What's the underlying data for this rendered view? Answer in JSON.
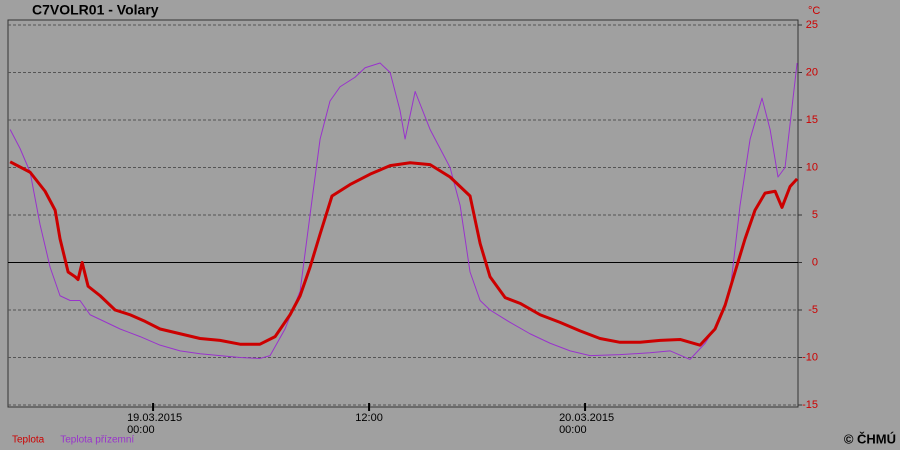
{
  "chart_data": {
    "type": "line",
    "title": "C7VOLR01 - Volary",
    "y_unit": "°C",
    "credit": "© ČHMÚ",
    "xlim": [
      -8.06,
      35.83
    ],
    "xticks": [
      {
        "value": 0,
        "label": "19.03.2015 00:00"
      },
      {
        "value": 12,
        "label": "12:00"
      },
      {
        "value": 24,
        "label": "20.03.2015 00:00"
      }
    ],
    "ylim": [
      -15,
      25
    ],
    "yticks": [
      -15,
      -10,
      -5,
      0,
      5,
      10,
      15,
      20,
      25
    ],
    "grid": true,
    "series": [
      {
        "name": "Teplota",
        "color": "#cc0000",
        "x": [
          -7.94,
          -6.83,
          -6,
          -5.44,
          -5.17,
          -4.72,
          -4.33,
          -4.17,
          -3.94,
          -3.61,
          -2.94,
          -2.11,
          -1.28,
          -0.44,
          0.39,
          1.5,
          2.61,
          3.72,
          4.83,
          5.94,
          6.78,
          7.61,
          8.17,
          8.72,
          9.28,
          9.94,
          10.94,
          12.06,
          13.17,
          14.28,
          15.39,
          16.5,
          17.61,
          18.17,
          18.72,
          19.56,
          20.39,
          21.5,
          22.61,
          23.72,
          24.83,
          25.94,
          27.06,
          28.17,
          29.28,
          30.39,
          31.22,
          31.78,
          32.33,
          32.89,
          33.44,
          34,
          34.56,
          34.94,
          35.39,
          35.78
        ],
        "values": [
          10.6,
          9.5,
          7.5,
          5.5,
          2.5,
          -1,
          -1.5,
          -1.8,
          0,
          -2.5,
          -3.5,
          -5,
          -5.5,
          -6.2,
          -7,
          -7.5,
          -8,
          -8.2,
          -8.6,
          -8.6,
          -7.8,
          -5.5,
          -3.5,
          -0.5,
          3,
          7,
          8.2,
          9.3,
          10.2,
          10.5,
          10.3,
          9,
          7,
          2,
          -1.5,
          -3.7,
          -4.3,
          -5.5,
          -6.3,
          -7.2,
          -8,
          -8.4,
          -8.4,
          -8.2,
          -8.1,
          -8.7,
          -7,
          -4.5,
          -1,
          2.5,
          5.5,
          7.3,
          7.5,
          5.8,
          8,
          8.8
        ]
      },
      {
        "name": "Teplota přízemní",
        "color": "#9933cc",
        "x": [
          -7.94,
          -7.39,
          -6.83,
          -6.28,
          -5.72,
          -5.17,
          -4.61,
          -4.06,
          -3.5,
          -2.94,
          -1.83,
          -0.72,
          0.39,
          1.5,
          2.61,
          3.72,
          4.83,
          5.94,
          6.5,
          7.33,
          8.17,
          8.72,
          9.28,
          9.83,
          10.39,
          11.22,
          11.78,
          12.61,
          13.17,
          13.72,
          14,
          14.56,
          15.39,
          16.5,
          17.06,
          17.61,
          18.17,
          18.72,
          19.83,
          20.94,
          22.06,
          23.17,
          24.28,
          25.94,
          27.61,
          28.72,
          29.83,
          30.67,
          31.5,
          32.06,
          32.61,
          33.17,
          33.83,
          34.28,
          34.72,
          35.11,
          35.78
        ],
        "values": [
          14,
          12,
          9.5,
          4,
          -0.5,
          -3.5,
          -4,
          -4,
          -5.5,
          -6,
          -7,
          -7.8,
          -8.7,
          -9.3,
          -9.6,
          -9.8,
          -10,
          -10.1,
          -9.8,
          -7,
          -3,
          5,
          13,
          17,
          18.5,
          19.5,
          20.5,
          21,
          20,
          16,
          13,
          18,
          14,
          10,
          6,
          -1,
          -4,
          -5,
          -6.3,
          -7.5,
          -8.5,
          -9.3,
          -9.8,
          -9.7,
          -9.5,
          -9.3,
          -10.2,
          -8.5,
          -6,
          -3,
          6,
          13,
          17.3,
          14,
          9,
          10,
          21
        ]
      }
    ]
  }
}
